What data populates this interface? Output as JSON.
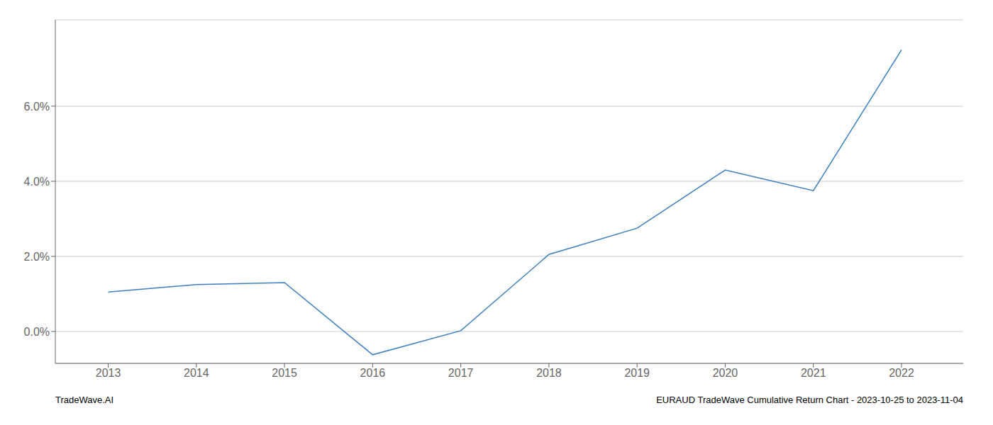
{
  "chart_data": {
    "type": "line",
    "x": [
      2013,
      2014,
      2015,
      2016,
      2017,
      2018,
      2019,
      2020,
      2021,
      2022
    ],
    "values": [
      1.05,
      1.25,
      1.3,
      -0.62,
      0.02,
      2.05,
      2.75,
      4.3,
      3.75,
      7.5
    ],
    "color": "#3a7ebf",
    "xlim": [
      2012.4,
      2022.7
    ],
    "xticks": [
      2013,
      2014,
      2015,
      2016,
      2017,
      2018,
      2019,
      2020,
      2021,
      2022
    ],
    "ylim": [
      -0.85,
      8.3
    ],
    "yticks": [
      {
        "value": 0.0,
        "label": "0.0%"
      },
      {
        "value": 2.0,
        "label": "2.0%"
      },
      {
        "value": 4.0,
        "label": "4.0%"
      },
      {
        "value": 6.0,
        "label": "6.0%"
      }
    ],
    "grid": true,
    "annotations": [
      "TradeWave.AI",
      "EURAUD TradeWave Cumulative Return Chart - 2023-10-25 to 2023-11-04"
    ]
  }
}
